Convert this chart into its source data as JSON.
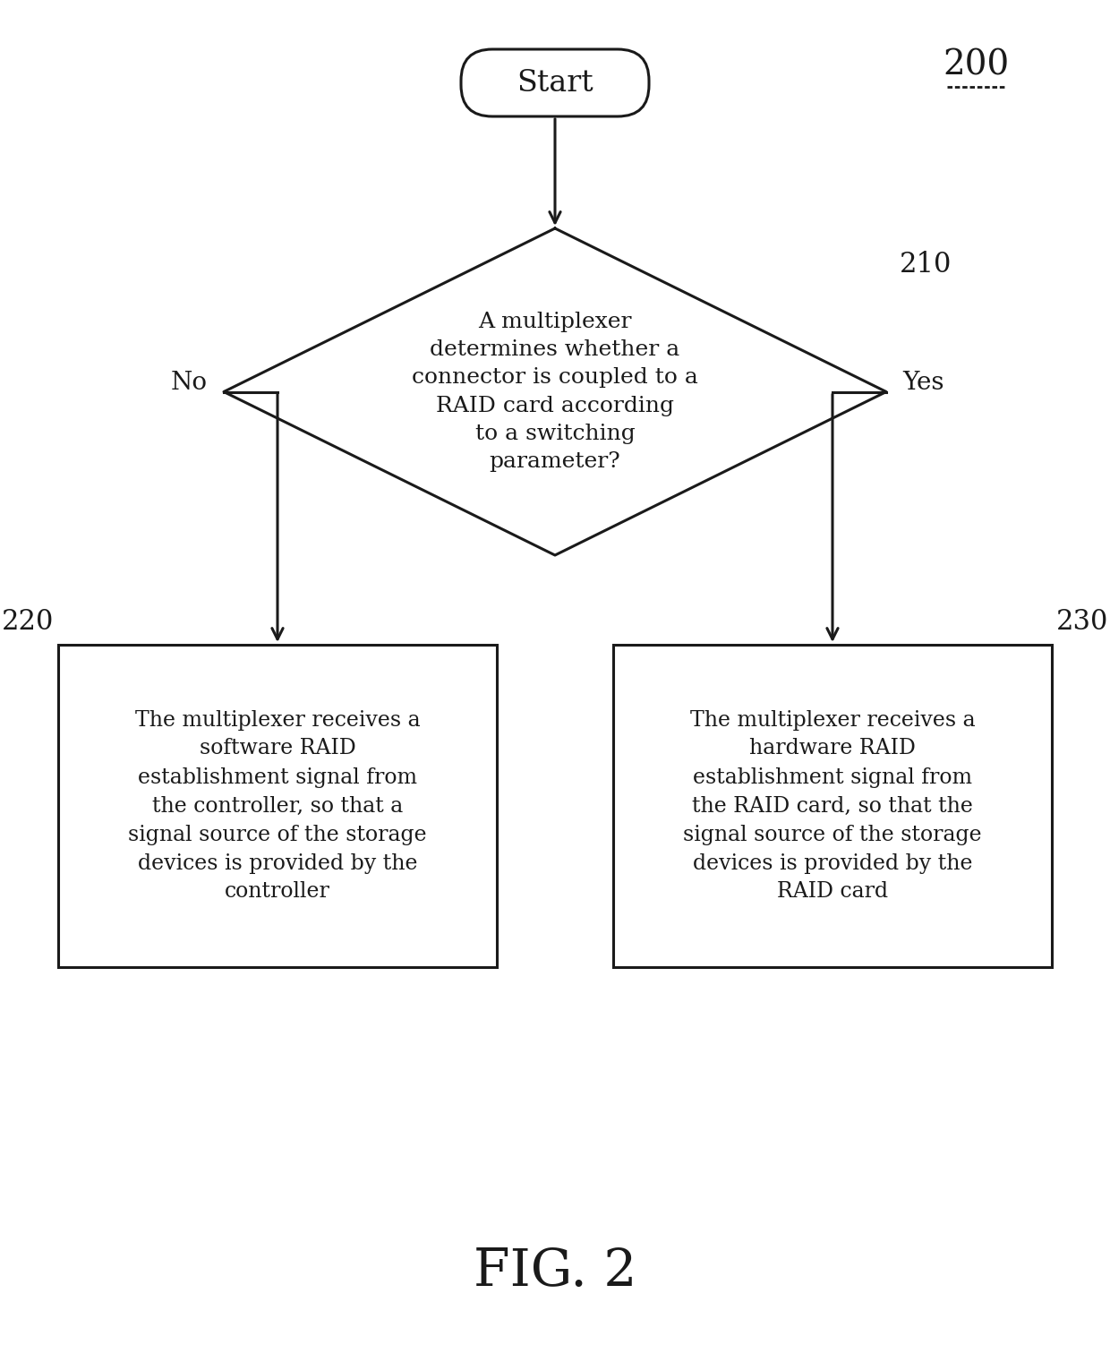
{
  "bg_color": "#ffffff",
  "fig_label": "200",
  "fig_caption": "FIG. 2",
  "start_text": "Start",
  "diamond_text": "A multiplexer\ndetermines whether a\nconnector is coupled to a\nRAID card according\nto a switching\nparameter?",
  "diamond_label": "210",
  "no_label": "No",
  "yes_label": "Yes",
  "box_left_label": "220",
  "box_right_label": "230",
  "box_left_text": "The multiplexer receives a\nsoftware RAID\nestablishment signal from\nthe controller, so that a\nsignal source of the storage\ndevices is provided by the\ncontroller",
  "box_right_text": "The multiplexer receives a\nhardware RAID\nestablishment signal from\nthe RAID card, so that the\nsignal source of the storage\ndevices is provided by the\nRAID card",
  "text_color": "#1a1a1a",
  "shape_edge_color": "#1a1a1a",
  "shape_face_color": "#ffffff",
  "font_family": "serif",
  "fig_w": 12.4,
  "fig_h": 15.02,
  "dpi": 100
}
